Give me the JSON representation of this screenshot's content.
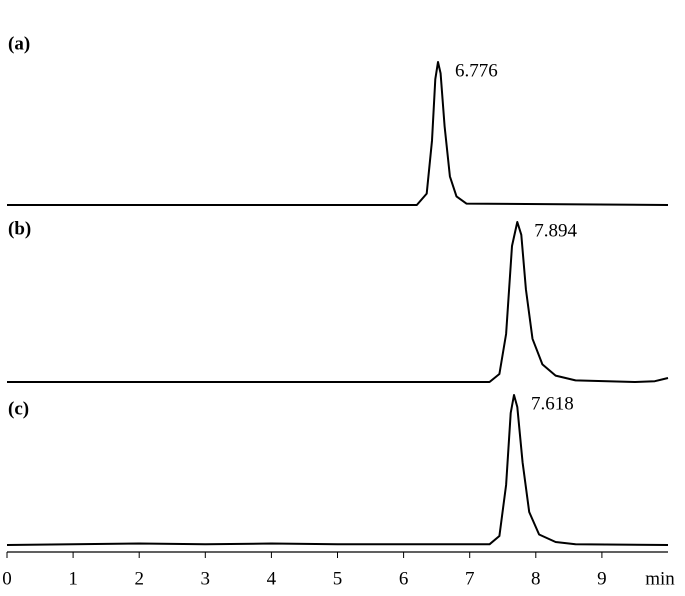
{
  "chart_data": [
    {
      "type": "line",
      "label": "(a)",
      "annotation": "6.776",
      "xlim": [
        0,
        10
      ],
      "ylim": [
        0,
        100
      ],
      "x": [
        0,
        6.2,
        6.35,
        6.43,
        6.48,
        6.52,
        6.56,
        6.62,
        6.7,
        6.8,
        6.95,
        10
      ],
      "values": [
        0,
        0,
        8,
        45,
        88,
        100,
        92,
        55,
        20,
        6,
        1,
        0
      ],
      "color": "#000000"
    },
    {
      "type": "line",
      "label": "(b)",
      "annotation": "7.894",
      "xlim": [
        0,
        10
      ],
      "ylim": [
        0,
        100
      ],
      "x": [
        0,
        7.3,
        7.45,
        7.55,
        7.64,
        7.72,
        7.78,
        7.85,
        7.95,
        8.1,
        8.3,
        8.6,
        9.5,
        9.8,
        10
      ],
      "values": [
        0,
        0,
        5,
        30,
        85,
        100,
        92,
        58,
        27,
        11,
        4,
        1,
        0,
        0.5,
        2.5
      ],
      "color": "#000000"
    },
    {
      "type": "line",
      "label": "(c)",
      "annotation": "7.618",
      "xlim": [
        0,
        10
      ],
      "ylim": [
        0,
        100
      ],
      "x": [
        0,
        1,
        2,
        3,
        4,
        5,
        6,
        7,
        7.3,
        7.45,
        7.55,
        7.62,
        7.67,
        7.72,
        7.8,
        7.9,
        8.05,
        8.3,
        8.6,
        10
      ],
      "values": [
        0,
        0.5,
        1,
        0.5,
        1,
        0.5,
        0.5,
        0.5,
        0.5,
        6,
        40,
        88,
        100,
        92,
        55,
        22,
        7,
        2,
        0.5,
        0
      ],
      "color": "#000000",
      "xticks": [
        0,
        1,
        2,
        3,
        4,
        5,
        6,
        7,
        8,
        9
      ],
      "xlabel": "min"
    }
  ]
}
